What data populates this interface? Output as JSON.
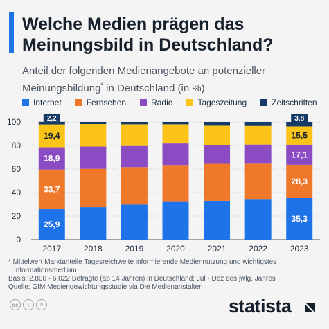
{
  "header": {
    "title": "Welche Medien prägen das Meinungsbild in Deutschland?",
    "subtitle_pre": "Anteil der folgenden Medienangebote an potenzieller Meinungsbildung",
    "subtitle_mark": "*",
    "subtitle_post": " in Deutschland (in %)"
  },
  "footer": {
    "note1": "* Mittelwert Marktanteile Tagesreichweite informierende Mediennutzung und wichtigstes",
    "note1b": "Informationsmedium",
    "basis": "Basis: 2.800 - 6.022 Befragte (ab 14 Jahren) in Deutschland; Jul - Dez des jwlg. Jahres",
    "source": "Quelle: GIM Mediengewichtungsstudie via Die Medienanstalten",
    "brand": "statista"
  },
  "chart_data": {
    "type": "bar",
    "stacked": true,
    "categories": [
      "2017",
      "2018",
      "2019",
      "2020",
      "2021",
      "2022",
      "2023"
    ],
    "ylim": [
      0,
      100
    ],
    "yticks": [
      0,
      20,
      40,
      60,
      80,
      100
    ],
    "grid": true,
    "legend_position": "top",
    "series": [
      {
        "name": "Internet",
        "color": "#1e73e8",
        "values": [
          25.9,
          27.6,
          29.8,
          32.6,
          33.0,
          34.0,
          35.3
        ],
        "labels": [
          "25,9",
          "",
          "",
          "",
          "",
          "",
          "35,3"
        ]
      },
      {
        "name": "Fernsehen",
        "color": "#f0782a",
        "values": [
          33.7,
          32.6,
          31.8,
          30.8,
          31.4,
          30.5,
          28.3
        ],
        "labels": [
          "33,7",
          "",
          "",
          "",
          "",
          "",
          "28,3"
        ]
      },
      {
        "name": "Radio",
        "color": "#8b4bc2",
        "values": [
          18.9,
          18.9,
          18.0,
          18.3,
          15.8,
          16.3,
          17.1
        ],
        "labels": [
          "18,9",
          "",
          "",
          "",
          "",
          "",
          "17,1"
        ]
      },
      {
        "name": "Tageszeitung",
        "color": "#fcc419",
        "values": [
          19.4,
          19.1,
          18.4,
          16.3,
          16.6,
          15.8,
          15.5
        ],
        "labels": [
          "19,4",
          "",
          "",
          "",
          "",
          "",
          "15,5"
        ]
      },
      {
        "name": "Zeitschriften",
        "color": "#143a66",
        "values": [
          2.2,
          1.8,
          2.0,
          2.0,
          3.2,
          3.4,
          3.8
        ],
        "labels": [
          "2,2",
          "",
          "",
          "",
          "",
          "",
          "3,8"
        ]
      }
    ]
  }
}
